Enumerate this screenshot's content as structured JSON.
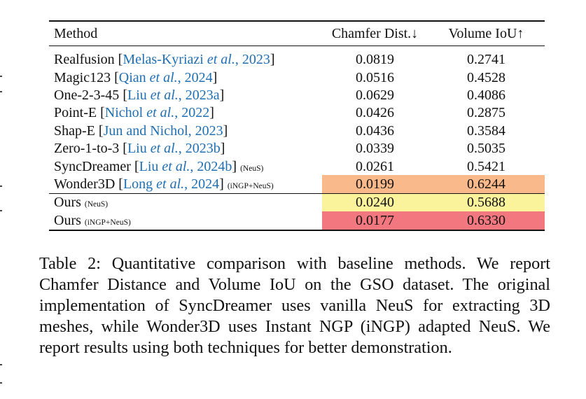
{
  "table": {
    "headers": {
      "method": "Method",
      "chamfer": "Chamfer Dist.↓",
      "iou": "Volume IoU↑"
    },
    "rows": [
      {
        "name": "Realfusion",
        "cite_pre": "Melas-Kyriazi ",
        "cite_it": "et al.",
        "cite_post": ", 2023",
        "tag": "",
        "chamfer": "0.0819",
        "iou": "0.2741"
      },
      {
        "name": "Magic123",
        "cite_pre": "Qian ",
        "cite_it": "et al.",
        "cite_post": ", 2024",
        "tag": "",
        "chamfer": "0.0516",
        "iou": "0.4528"
      },
      {
        "name": "One-2-3-45",
        "cite_pre": "Liu ",
        "cite_it": "et al.",
        "cite_post": ", 2023a",
        "tag": "",
        "chamfer": "0.0629",
        "iou": "0.4086"
      },
      {
        "name": "Point-E",
        "cite_pre": "Nichol ",
        "cite_it": "et al.",
        "cite_post": ", 2022",
        "tag": "",
        "chamfer": "0.0426",
        "iou": "0.2875"
      },
      {
        "name": "Shap-E",
        "cite_pre": "Jun and Nichol, 2023",
        "cite_it": "",
        "cite_post": "",
        "tag": "",
        "chamfer": "0.0436",
        "iou": "0.3584"
      },
      {
        "name": "Zero-1-to-3",
        "cite_pre": "Liu ",
        "cite_it": "et al.",
        "cite_post": ", 2023b",
        "tag": "",
        "chamfer": "0.0339",
        "iou": "0.5035"
      },
      {
        "name": "SyncDreamer",
        "cite_pre": "Liu ",
        "cite_it": "et al.",
        "cite_post": ", 2024b",
        "tag": "(NeuS)",
        "chamfer": "0.0261",
        "iou": "0.5421"
      },
      {
        "name": "Wonder3D",
        "cite_pre": "Long ",
        "cite_it": "et al.",
        "cite_post": ", 2024",
        "tag": "(iNGP+NeuS)",
        "chamfer": "0.0199",
        "iou": "0.6244"
      }
    ],
    "ours": [
      {
        "name": "Ours",
        "tag": "(NeuS)",
        "chamfer": "0.0240",
        "iou": "0.5688"
      },
      {
        "name": "Ours",
        "tag": "(iNGP+NeuS)",
        "chamfer": "0.0177",
        "iou": "0.6330"
      }
    ],
    "highlight_colors": {
      "second": "#f9b98a",
      "third": "#fbf39c",
      "best": "#f2777f"
    }
  },
  "caption": "Table 2: Quantitative comparison with baseline methods. We report Chamfer Distance and Volume IoU on the GSO dataset. The original implementation of SyncDreamer uses vanilla NeuS for extracting 3D meshes, while Wonder3D uses Instant NGP (iNGP) adapted NeuS. We report results using both techniques for better demonstration."
}
